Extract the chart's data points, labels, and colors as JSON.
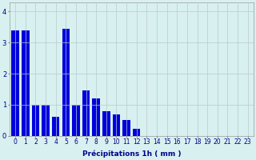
{
  "categories": [
    0,
    1,
    2,
    3,
    4,
    5,
    6,
    7,
    8,
    9,
    10,
    11,
    12,
    13,
    14,
    15,
    16,
    17,
    18,
    19,
    20,
    21,
    22,
    23
  ],
  "values": [
    3.4,
    3.4,
    1.0,
    1.0,
    0.6,
    3.45,
    1.0,
    1.45,
    1.2,
    0.8,
    0.7,
    0.5,
    0.22,
    0,
    0,
    0,
    0,
    0,
    0,
    0,
    0,
    0,
    0,
    0
  ],
  "bar_color": "#0000dd",
  "background_color": "#d8f0f0",
  "grid_color": "#b8cccc",
  "xlabel": "Précipitations 1h ( mm )",
  "ylim": [
    0,
    4.3
  ],
  "yticks": [
    0,
    1,
    2,
    3,
    4
  ],
  "xlabel_fontsize": 6.5,
  "tick_fontsize": 5.5,
  "bar_width": 0.75
}
